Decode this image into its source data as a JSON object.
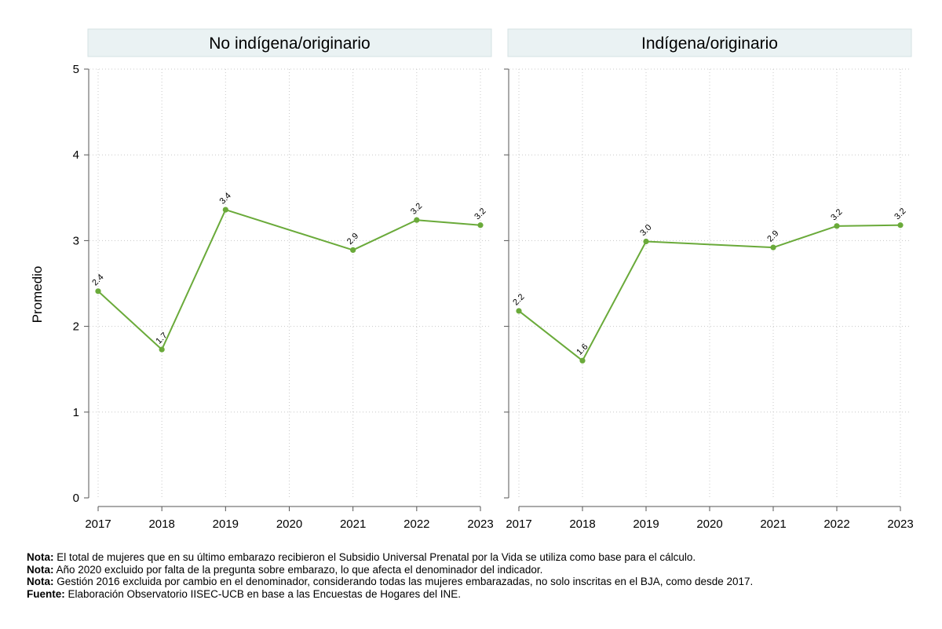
{
  "chart_data": {
    "type": "line",
    "ylabel": "Promedio",
    "ylim": [
      0,
      5
    ],
    "yticks": [
      "0",
      "1",
      "2",
      "3",
      "4",
      "5"
    ],
    "x": [
      "2017",
      "2018",
      "2019",
      "2020",
      "2021",
      "2022",
      "2023"
    ],
    "grid": true,
    "line_color": "#6aaa3a",
    "panels": [
      {
        "title": "No indígena/originario",
        "points": [
          {
            "x": "2017",
            "y": 2.41,
            "label": "2.4"
          },
          {
            "x": "2018",
            "y": 1.73,
            "label": "1.7"
          },
          {
            "x": "2019",
            "y": 3.36,
            "label": "3.4"
          },
          {
            "x": "2021",
            "y": 2.89,
            "label": "2.9"
          },
          {
            "x": "2022",
            "y": 3.24,
            "label": "3.2"
          },
          {
            "x": "2023",
            "y": 3.18,
            "label": "3.2"
          }
        ]
      },
      {
        "title": "Indígena/originario",
        "points": [
          {
            "x": "2017",
            "y": 2.18,
            "label": "2.2"
          },
          {
            "x": "2018",
            "y": 1.6,
            "label": "1.6"
          },
          {
            "x": "2019",
            "y": 2.99,
            "label": "3.0"
          },
          {
            "x": "2021",
            "y": 2.92,
            "label": "2.9"
          },
          {
            "x": "2022",
            "y": 3.17,
            "label": "3.2"
          },
          {
            "x": "2023",
            "y": 3.18,
            "label": "3.2"
          }
        ]
      }
    ]
  },
  "notes": [
    {
      "prefix": "Nota:",
      "text": " El total de mujeres que en su último embarazo recibieron el Subsidio Universal Prenatal por la Vida se utiliza como base para el cálculo."
    },
    {
      "prefix": "Nota:",
      "text": " Año 2020 excluido por falta de la pregunta sobre embarazo, lo que afecta el denominador del indicador."
    },
    {
      "prefix": "Nota:",
      "text": " Gestión 2016 excluida por cambio en el denominador, considerando todas las mujeres embarazadas, no solo inscritas en el BJA, como desde 2017."
    },
    {
      "prefix": "Fuente:",
      "text": " Elaboración Observatorio IISEC-UCB en base a las Encuestas de Hogares del INE."
    }
  ]
}
